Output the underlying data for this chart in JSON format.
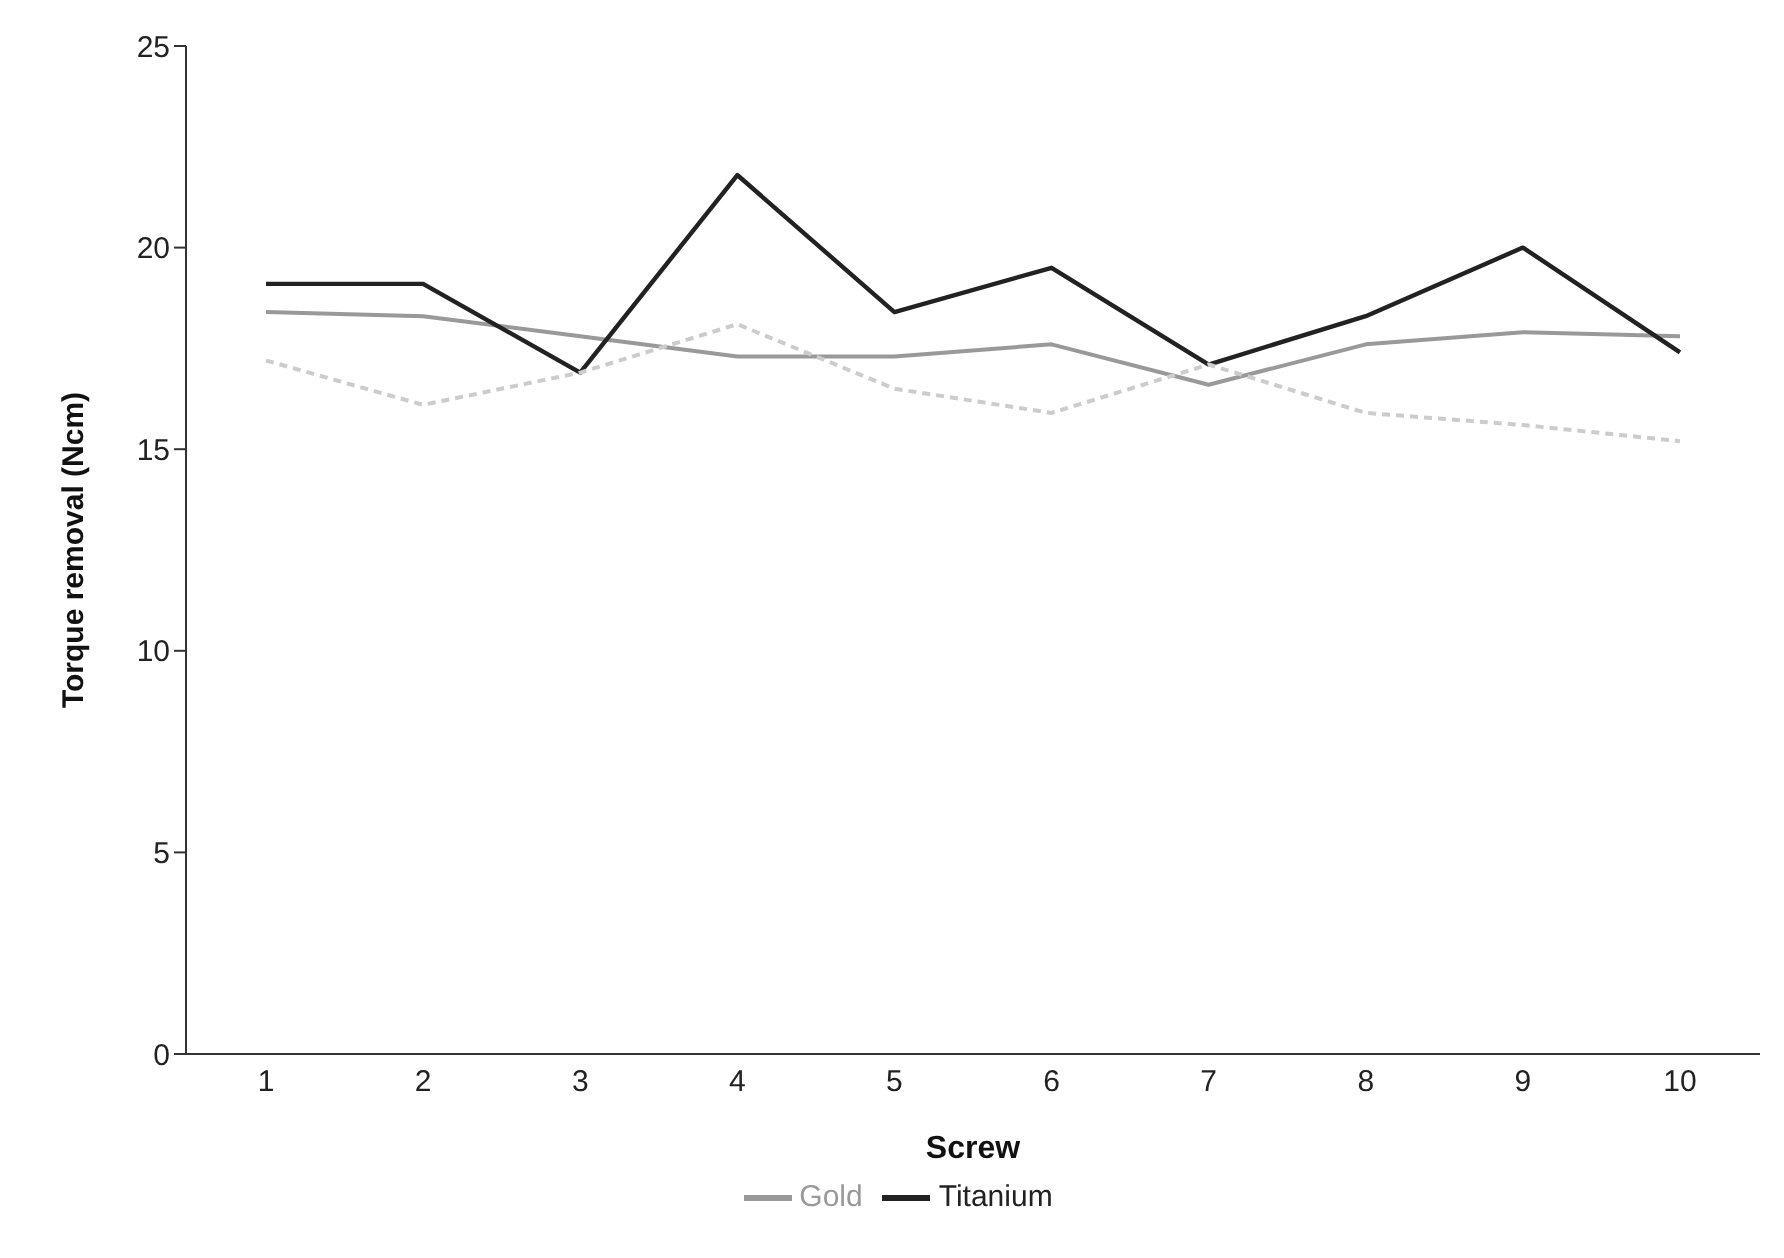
{
  "chart_data": {
    "type": "line",
    "xlabel": "Screw",
    "ylabel": "Torque removal (Ncm)",
    "categories": [
      "1",
      "2",
      "3",
      "4",
      "5",
      "6",
      "7",
      "8",
      "9",
      "10"
    ],
    "series": [
      {
        "name": "Gold",
        "color": "#999999",
        "values": [
          18.4,
          18.3,
          17.8,
          17.3,
          17.3,
          17.6,
          16.6,
          17.6,
          17.9,
          17.8
        ]
      },
      {
        "name": "Titanium",
        "color": "#222222",
        "values": [
          19.1,
          19.1,
          16.9,
          21.8,
          18.4,
          19.5,
          17.1,
          18.3,
          20.0,
          17.4
        ]
      },
      {
        "color": "#cccccc",
        "line_style": "dashed",
        "values": [
          17.2,
          16.1,
          16.9,
          18.1,
          16.5,
          15.9,
          17.1,
          15.9,
          15.6,
          15.2
        ]
      }
    ],
    "ylim": [
      0,
      25
    ],
    "yticks": [
      0,
      5,
      10,
      15,
      20,
      25
    ],
    "grid": false,
    "legend": "bottom",
    "marker": "none"
  }
}
